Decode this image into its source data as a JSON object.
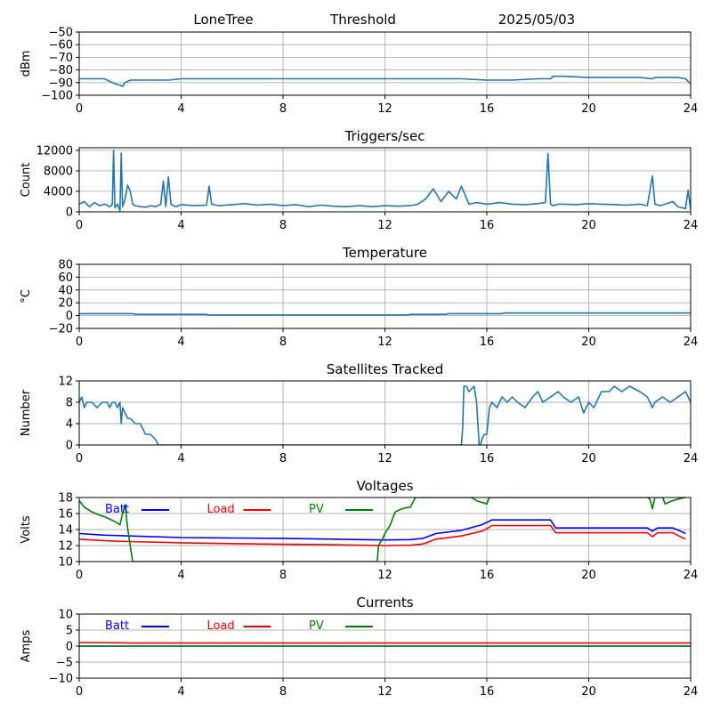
{
  "header": {
    "site": "LoneTree",
    "mode": "Threshold",
    "date": "2025/05/03"
  },
  "colors": {
    "series": "#1f77b4",
    "batt": "#0000ff",
    "load": "#ff0000",
    "pv": "#008000",
    "grid": "#b0b0b0"
  },
  "chart_data": [
    {
      "type": "line",
      "title": "",
      "ylabel": "dBm",
      "xlim": [
        0,
        24
      ],
      "ylim": [
        -100,
        -50
      ],
      "xticks": [
        0,
        4,
        8,
        12,
        16,
        20,
        24
      ],
      "yticks": [
        -100,
        -90,
        -80,
        -70,
        -60,
        -50
      ],
      "grid": true,
      "series": [
        {
          "color": "#1f77b4",
          "x": [
            0,
            0.5,
            1.0,
            1.2,
            1.4,
            1.6,
            1.7,
            1.8,
            2.0,
            2.5,
            3.0,
            3.5,
            4.0,
            5.0,
            6.0,
            7.0,
            8.0,
            9.0,
            10.0,
            11.0,
            12.0,
            13.0,
            14.0,
            15.0,
            16.0,
            17.0,
            18.0,
            18.5,
            18.6,
            19.0,
            20.0,
            21.0,
            22.0,
            22.5,
            22.6,
            23.0,
            23.5,
            23.8,
            24.0
          ],
          "y": [
            -87,
            -87,
            -87,
            -89,
            -91,
            -92,
            -93,
            -90,
            -88,
            -88,
            -88,
            -88,
            -87,
            -87,
            -87,
            -87,
            -87,
            -87,
            -87,
            -87,
            -87,
            -87,
            -87,
            -87,
            -88,
            -88,
            -87,
            -87,
            -85,
            -85,
            -86,
            -86,
            -86,
            -87,
            -86,
            -86,
            -86,
            -87,
            -91
          ]
        }
      ]
    },
    {
      "type": "line",
      "title": "Triggers/sec",
      "ylabel": "Count",
      "xlim": [
        0,
        24
      ],
      "ylim": [
        0,
        12500
      ],
      "xticks": [
        0,
        4,
        8,
        12,
        16,
        20,
        24
      ],
      "yticks": [
        0,
        4000,
        8000,
        12000
      ],
      "grid": true,
      "series": [
        {
          "color": "#1f77b4",
          "x": [
            0,
            0.2,
            0.4,
            0.6,
            0.8,
            1.0,
            1.2,
            1.3,
            1.35,
            1.4,
            1.5,
            1.6,
            1.65,
            1.7,
            1.8,
            1.9,
            2.0,
            2.1,
            2.2,
            2.4,
            2.6,
            2.8,
            3.0,
            3.2,
            3.3,
            3.4,
            3.5,
            3.6,
            3.7,
            3.8,
            4.0,
            4.5,
            5.0,
            5.1,
            5.2,
            5.5,
            6.0,
            6.5,
            7.0,
            7.5,
            8.0,
            8.5,
            9.0,
            9.5,
            10.0,
            10.5,
            11.0,
            11.5,
            12.0,
            12.5,
            13.0,
            13.3,
            13.6,
            13.9,
            14.2,
            14.5,
            14.8,
            15.0,
            15.3,
            15.6,
            16.0,
            16.5,
            17.0,
            17.5,
            18.0,
            18.3,
            18.4,
            18.5,
            18.6,
            18.8,
            19.0,
            19.5,
            20.0,
            20.5,
            21.0,
            21.5,
            22.0,
            22.3,
            22.5,
            22.6,
            22.8,
            23.0,
            23.3,
            23.5,
            23.8,
            23.9,
            24.0
          ],
          "y": [
            1500,
            2000,
            1000,
            1800,
            1200,
            1500,
            1000,
            1400,
            12000,
            800,
            1500,
            200,
            11500,
            1000,
            2500,
            5200,
            4000,
            1500,
            1200,
            1000,
            900,
            1200,
            1000,
            1500,
            6000,
            1000,
            6800,
            1500,
            1200,
            1000,
            1400,
            1200,
            1300,
            5000,
            1500,
            1200,
            1400,
            1600,
            1300,
            1500,
            1200,
            1400,
            1000,
            1300,
            1100,
            1000,
            1200,
            1000,
            1200,
            1100,
            1200,
            1500,
            2500,
            4500,
            2000,
            4000,
            2500,
            5000,
            1500,
            1800,
            1500,
            1800,
            1500,
            1400,
            1600,
            1800,
            11400,
            1500,
            1200,
            1500,
            1500,
            1400,
            1600,
            1500,
            1400,
            1300,
            1500,
            1200,
            7000,
            1500,
            1200,
            1500,
            2000,
            1000,
            600,
            4200,
            400
          ]
        }
      ]
    },
    {
      "type": "line",
      "title": "Temperature",
      "ylabel": "°C",
      "xlim": [
        0,
        24
      ],
      "ylim": [
        -20,
        80
      ],
      "xticks": [
        0,
        4,
        8,
        12,
        16,
        20,
        24
      ],
      "yticks": [
        -20,
        0,
        20,
        40,
        60,
        80
      ],
      "grid": true,
      "series": [
        {
          "color": "#1f77b4",
          "x": [
            0,
            2.1,
            2.2,
            5.0,
            5.1,
            12.9,
            13.0,
            14.4,
            14.5,
            16.6,
            16.7,
            24.0
          ],
          "y": [
            3,
            3,
            2,
            2,
            1,
            1,
            2,
            2,
            3,
            3,
            4,
            4
          ]
        }
      ]
    },
    {
      "type": "line",
      "title": "Satellites Tracked",
      "ylabel": "Number",
      "xlim": [
        0,
        24
      ],
      "ylim": [
        0,
        12
      ],
      "xticks": [
        0,
        4,
        8,
        12,
        16,
        20,
        24
      ],
      "yticks": [
        0,
        4,
        8,
        12
      ],
      "grid": true,
      "series": [
        {
          "color": "#1f77b4",
          "x": [
            0,
            0.1,
            0.2,
            0.3,
            0.5,
            0.7,
            0.9,
            1.1,
            1.2,
            1.3,
            1.4,
            1.5,
            1.6,
            1.65,
            1.7,
            1.8,
            1.9,
            2.0,
            2.2,
            2.4,
            2.5,
            2.6,
            2.8,
            3.0,
            3.1,
            3.2,
            4.0,
            8.0,
            12.0,
            15.0,
            15.05,
            15.1,
            15.2,
            15.3,
            15.5,
            15.6,
            15.7,
            15.75,
            15.8,
            15.9,
            16.0,
            16.1,
            16.2,
            16.4,
            16.6,
            16.8,
            17.0,
            17.2,
            17.5,
            17.8,
            18.0,
            18.2,
            18.5,
            18.8,
            19.0,
            19.3,
            19.6,
            19.8,
            20.0,
            20.2,
            20.5,
            20.8,
            21.0,
            21.3,
            21.6,
            22.0,
            22.3,
            22.5,
            22.6,
            22.9,
            23.2,
            23.5,
            23.8,
            24.0
          ],
          "y": [
            8,
            9,
            7,
            8,
            8,
            7,
            8,
            8,
            7,
            8,
            8,
            7,
            8,
            4,
            7,
            6,
            5,
            5,
            4,
            4,
            3,
            2,
            2,
            1,
            0,
            0,
            0,
            0,
            0,
            0,
            3,
            11,
            11,
            10,
            11,
            8,
            0,
            0,
            1,
            2,
            2,
            7,
            8,
            7,
            9,
            8,
            9,
            8,
            7,
            9,
            10,
            8,
            9,
            10,
            9,
            8,
            9,
            6,
            8,
            7,
            10,
            10,
            11,
            10,
            11,
            10,
            9,
            7,
            8,
            9,
            8,
            9,
            10,
            8
          ]
        }
      ]
    },
    {
      "type": "line",
      "title": "Voltages",
      "ylabel": "Volts",
      "xlim": [
        0,
        24
      ],
      "ylim": [
        10,
        18
      ],
      "xticks": [
        0,
        4,
        8,
        12,
        16,
        20,
        24
      ],
      "yticks": [
        10,
        12,
        14,
        16,
        18
      ],
      "grid": true,
      "legend": "top-left",
      "series": [
        {
          "name": "Batt",
          "color": "#0000ff",
          "x": [
            0,
            1,
            2,
            4,
            6,
            8,
            10,
            12,
            13,
            13.5,
            14,
            15,
            15.8,
            16,
            16.2,
            17,
            18,
            18.5,
            18.7,
            20,
            22,
            22.3,
            22.5,
            22.7,
            23,
            23.3,
            23.6,
            23.8
          ],
          "y": [
            13.5,
            13.3,
            13.2,
            13.0,
            12.95,
            12.9,
            12.8,
            12.7,
            12.75,
            12.9,
            13.5,
            13.9,
            14.6,
            14.9,
            15.2,
            15.2,
            15.2,
            15.2,
            14.2,
            14.2,
            14.2,
            14.2,
            13.8,
            14.2,
            14.2,
            14.2,
            13.8,
            13.5
          ]
        },
        {
          "name": "Load",
          "color": "#ff0000",
          "x": [
            0,
            1,
            2,
            4,
            6,
            8,
            10,
            12,
            13,
            13.5,
            14,
            15,
            15.8,
            16,
            16.2,
            17,
            18,
            18.5,
            18.7,
            20,
            22,
            22.3,
            22.5,
            22.7,
            23,
            23.3,
            23.6,
            23.8
          ],
          "y": [
            12.8,
            12.6,
            12.5,
            12.35,
            12.25,
            12.15,
            12.1,
            12.0,
            12.05,
            12.2,
            12.8,
            13.2,
            13.8,
            14.1,
            14.5,
            14.5,
            14.5,
            14.5,
            13.6,
            13.6,
            13.6,
            13.6,
            13.1,
            13.6,
            13.6,
            13.6,
            13.1,
            12.8
          ]
        },
        {
          "name": "PV",
          "color": "#008000",
          "x": [
            0,
            0.2,
            0.5,
            0.8,
            1.0,
            1.2,
            1.4,
            1.6,
            1.7,
            1.8,
            1.9,
            2.0,
            2.1,
            11.7,
            11.75,
            11.9,
            12.0,
            12.2,
            12.4,
            12.6,
            12.8,
            13.0,
            13.2,
            15.4,
            15.6,
            16.0,
            16.1,
            22.3,
            22.4,
            22.5,
            22.6,
            22.9,
            23.0,
            23.2,
            23.5,
            23.8
          ],
          "y": [
            17.6,
            16.8,
            16.2,
            15.8,
            15.6,
            15.3,
            15.0,
            14.6,
            16.0,
            17.1,
            14.2,
            12.0,
            10.0,
            10.0,
            12.0,
            12.8,
            13.5,
            14.5,
            16.2,
            16.5,
            16.7,
            16.8,
            18.0,
            18.0,
            17.6,
            17.2,
            18.0,
            18.0,
            17.8,
            16.6,
            18.0,
            18.0,
            17.2,
            17.5,
            17.8,
            18.0
          ]
        }
      ]
    },
    {
      "type": "line",
      "title": "Currents",
      "ylabel": "Amps",
      "xlim": [
        0,
        24
      ],
      "ylim": [
        -10,
        10
      ],
      "xticks": [
        0,
        4,
        8,
        12,
        16,
        20,
        24
      ],
      "yticks": [
        -10,
        -5,
        0,
        5,
        10
      ],
      "grid": true,
      "legend": "top-left",
      "series": [
        {
          "name": "Batt",
          "color": "#0000ff",
          "x": [
            0,
            24
          ],
          "y": [
            0,
            0
          ]
        },
        {
          "name": "Load",
          "color": "#ff0000",
          "x": [
            0,
            1,
            2,
            4,
            8,
            12,
            16,
            20,
            24
          ],
          "y": [
            1.1,
            1.1,
            1.0,
            1.0,
            1.0,
            1.0,
            1.0,
            1.0,
            1.0
          ]
        },
        {
          "name": "PV",
          "color": "#008000",
          "x": [
            0,
            24
          ],
          "y": [
            0,
            0
          ]
        }
      ]
    }
  ]
}
